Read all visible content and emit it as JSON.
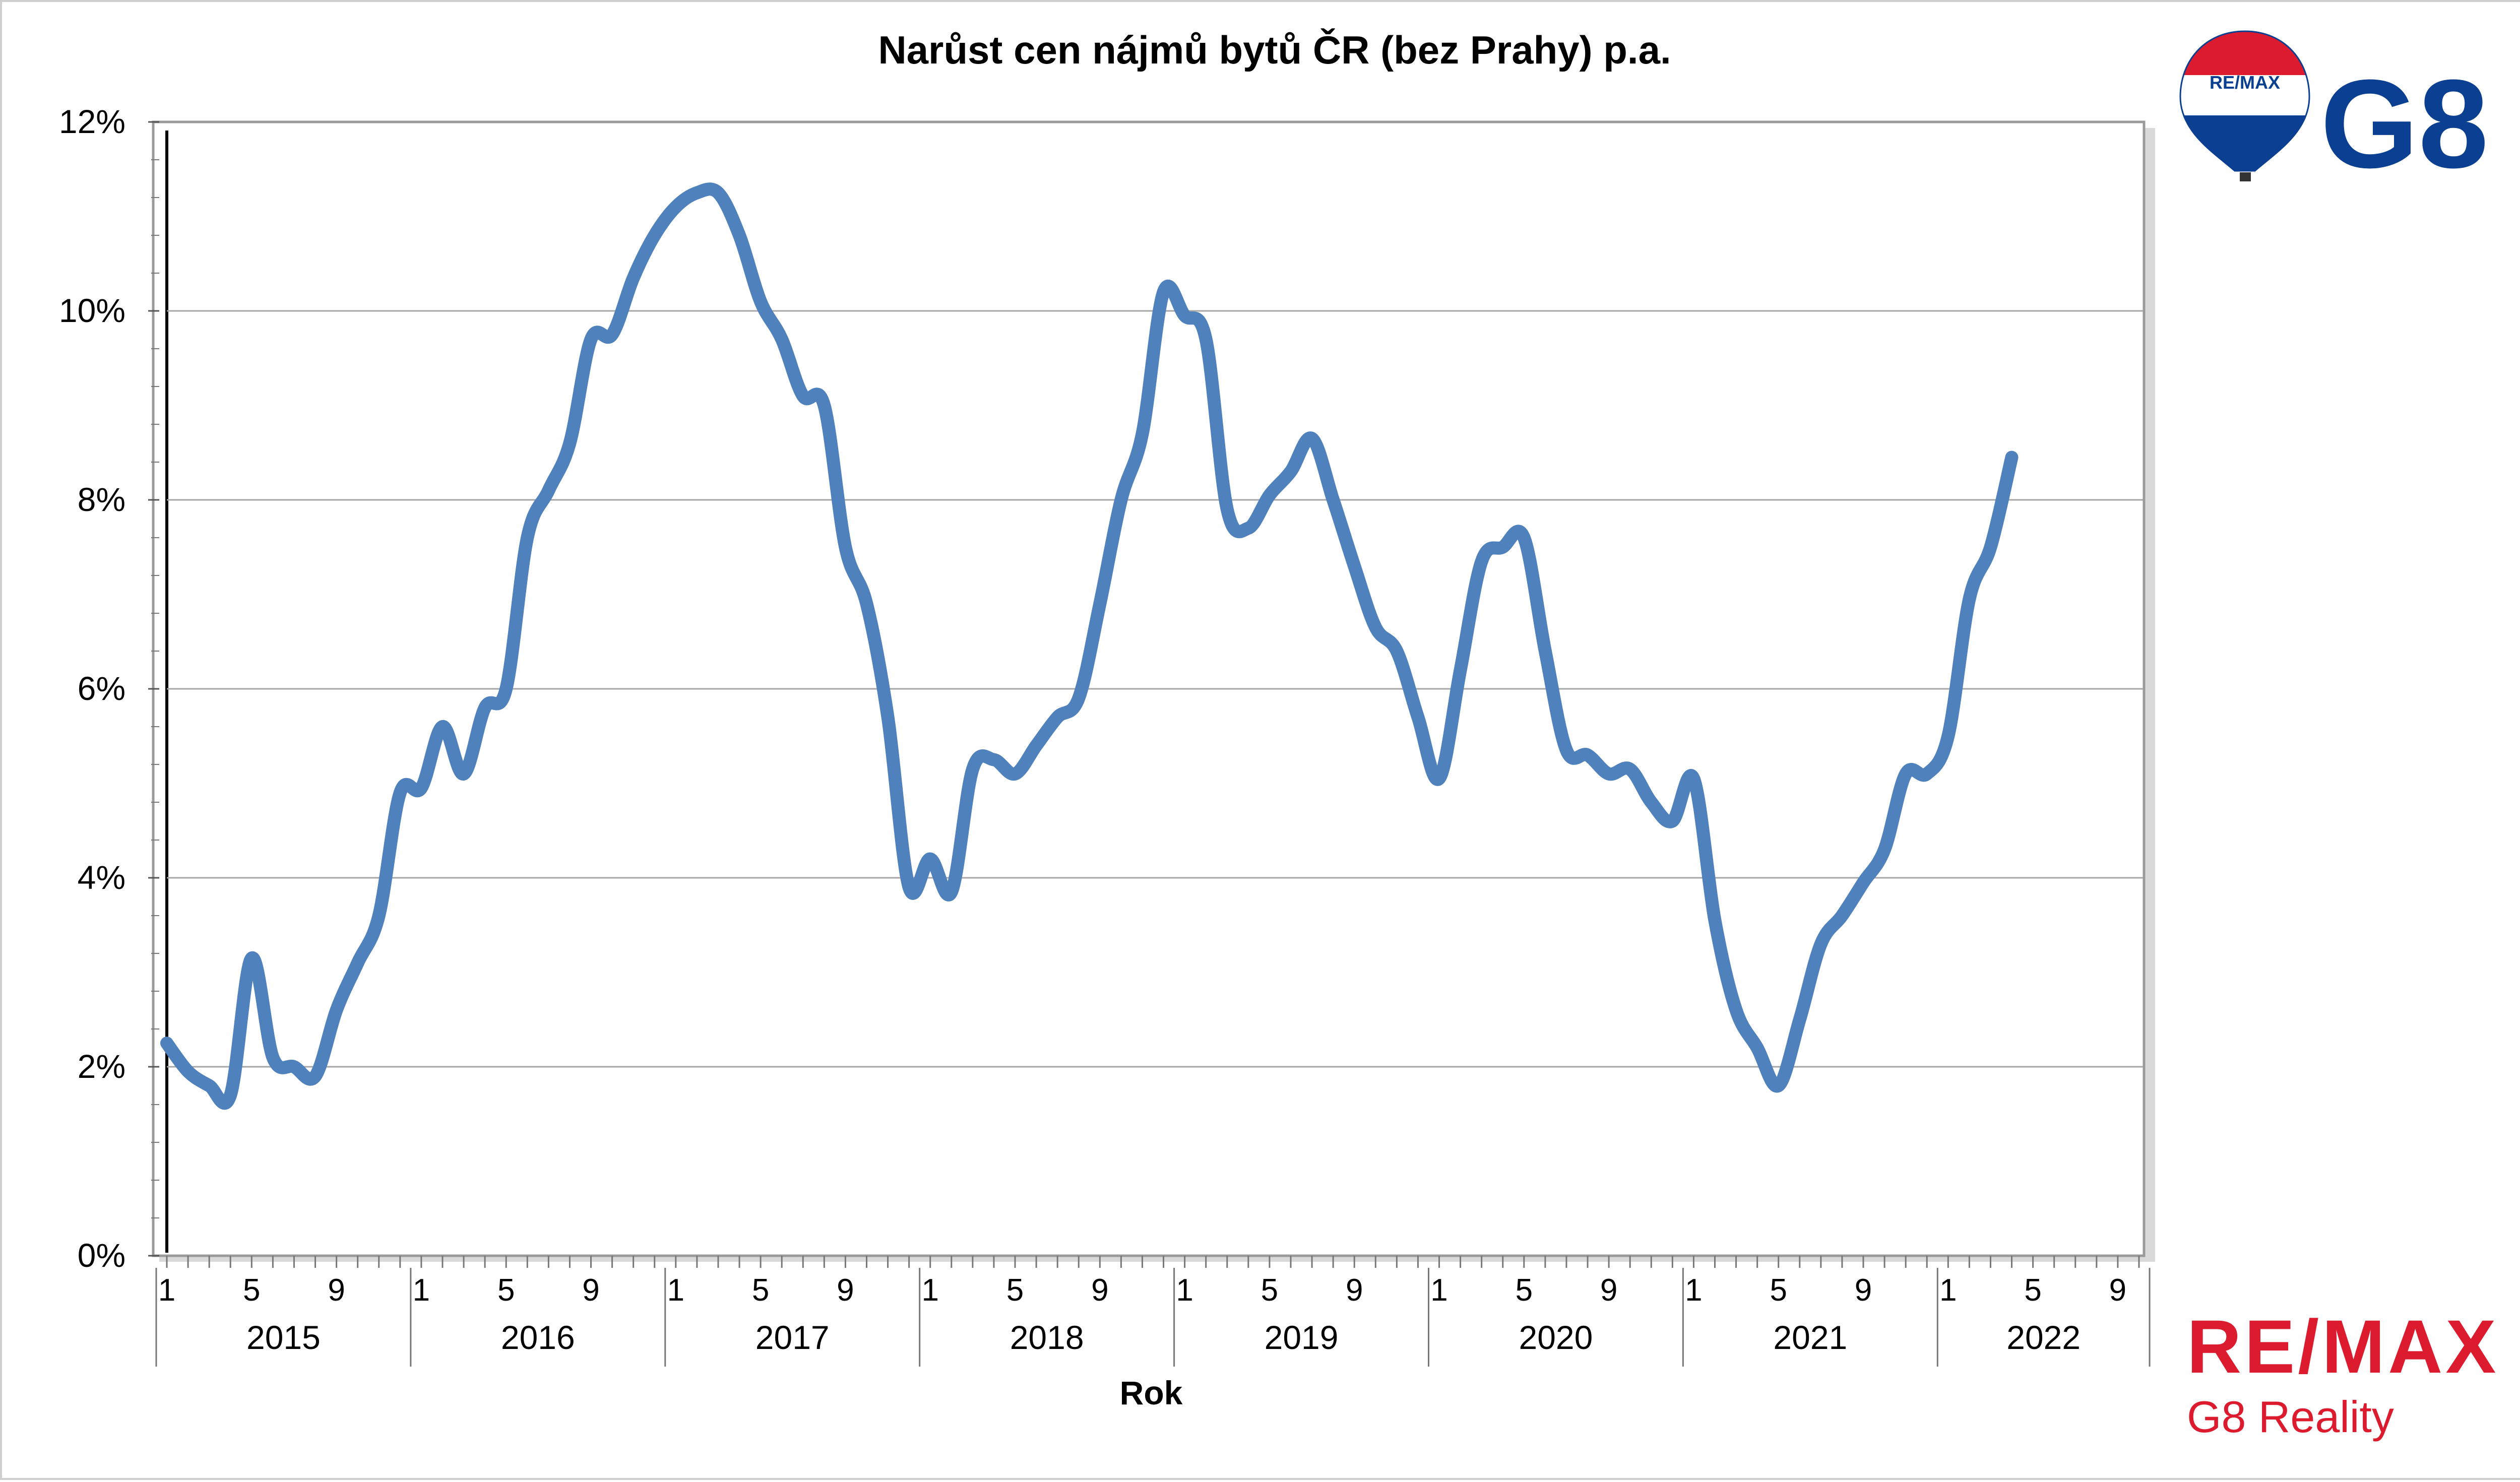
{
  "chart_data": {
    "type": "line",
    "title": "Narůst cen nájmů bytů ČR (bez Prahy) p.a.",
    "xlabel": "Rok",
    "ylabel": "",
    "ylim": [
      0,
      12
    ],
    "y_ticks": [
      "0%",
      "2%",
      "4%",
      "6%",
      "8%",
      "10%",
      "12%"
    ],
    "grid": true,
    "legend": "none",
    "month_tick_labels": [
      "1",
      "5",
      "9"
    ],
    "years": [
      "2015",
      "2016",
      "2017",
      "2018",
      "2019",
      "2020",
      "2021",
      "2022"
    ],
    "last_year_months": 10,
    "series": [
      {
        "color": "#4f81bd",
        "x_start": "2015-01",
        "values": [
          2.25,
          1.95,
          1.8,
          1.7,
          3.15,
          2.1,
          2.0,
          1.9,
          2.6,
          3.1,
          3.6,
          4.9,
          4.95,
          5.6,
          5.1,
          5.8,
          6.0,
          7.6,
          8.1,
          8.6,
          9.7,
          9.75,
          10.35,
          10.8,
          11.1,
          11.25,
          11.25,
          10.8,
          10.1,
          9.7,
          9.1,
          9.0,
          7.5,
          6.9,
          5.7,
          3.9,
          4.2,
          3.85,
          5.15,
          5.25,
          5.1,
          5.4,
          5.7,
          5.9,
          6.9,
          8.0,
          8.7,
          10.2,
          9.95,
          9.7,
          7.9,
          7.7,
          8.05,
          8.3,
          8.65,
          8.0,
          7.3,
          6.65,
          6.4,
          5.7,
          5.05,
          6.2,
          7.35,
          7.5,
          7.6,
          6.4,
          5.35,
          5.3,
          5.1,
          5.15,
          4.8,
          4.6,
          5.05,
          3.55,
          2.6,
          2.2,
          1.8,
          2.5,
          3.3,
          3.6,
          3.95,
          4.3,
          5.1,
          5.1,
          5.5,
          6.95,
          7.5,
          8.45
        ]
      }
    ]
  },
  "branding": {
    "balloon_label": "RE/MAX",
    "g8_logo": "G8",
    "remax_wordmark": "RE/MAX",
    "remax_subtitle": "G8 Reality",
    "colors": {
      "red": "#dc1c2e",
      "blue": "#0b3f91"
    }
  }
}
